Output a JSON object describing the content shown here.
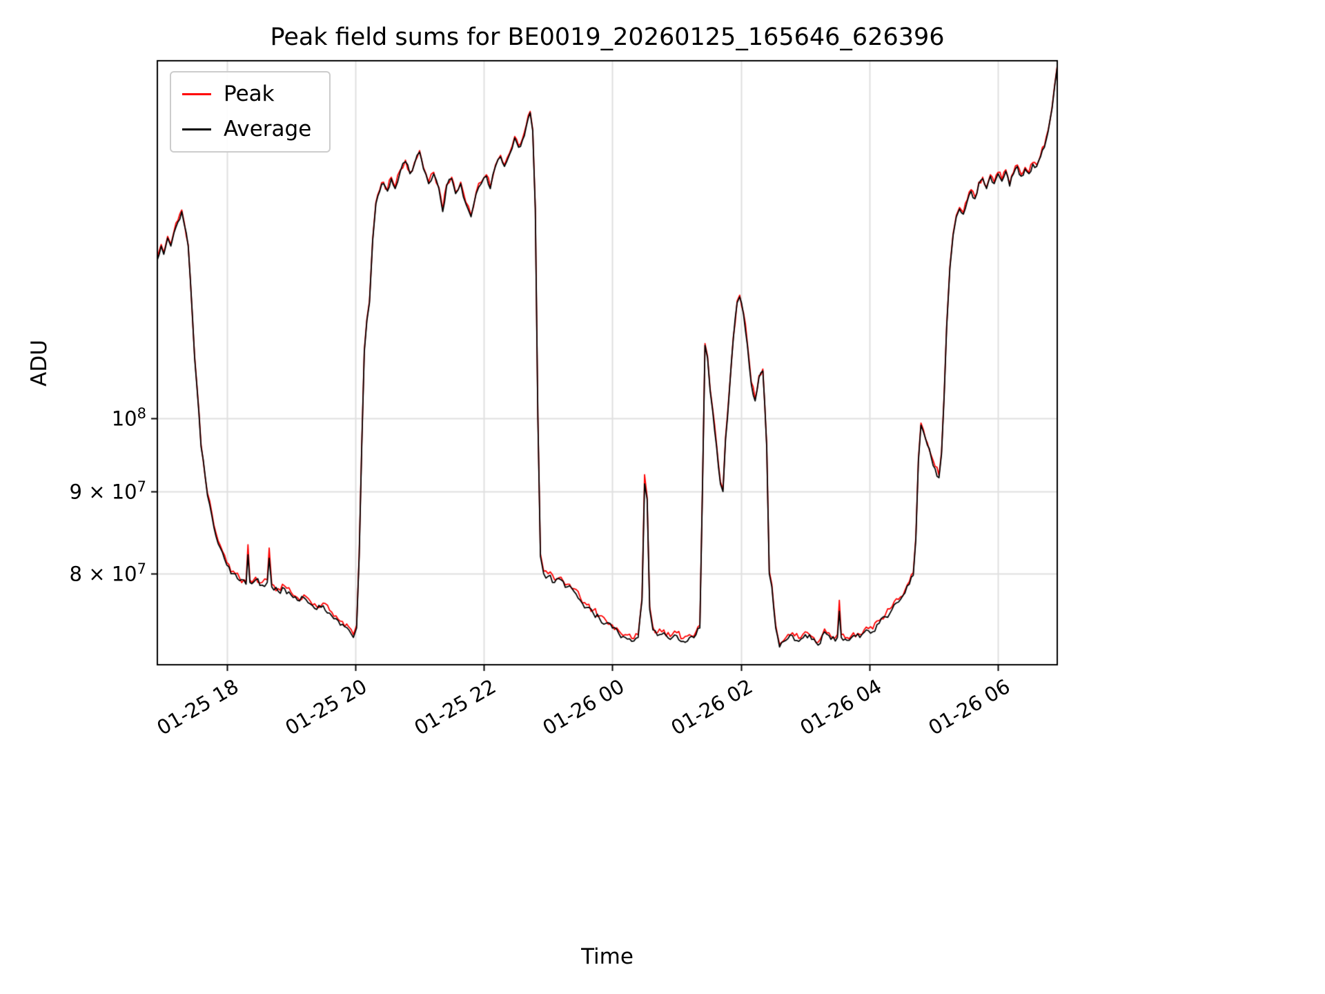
{
  "chart_data": {
    "type": "line",
    "title": "Peak field sums for BE0019_20260125_165646_626396",
    "xlabel": "Time",
    "ylabel": "ADU",
    "y_log_scale": true,
    "grid": true,
    "grid_color": "#e0e0e0",
    "ylim": [
      70200000,
      167000000
    ],
    "x_range_hours": [
      16.92,
      30.92
    ],
    "y_unit": 10000000,
    "x_ticks": [
      {
        "hour": 18,
        "label": "01-25 18"
      },
      {
        "hour": 20,
        "label": "01-25 20"
      },
      {
        "hour": 22,
        "label": "01-25 22"
      },
      {
        "hour": 24,
        "label": "01-26 00"
      },
      {
        "hour": 26,
        "label": "01-26 02"
      },
      {
        "hour": 28,
        "label": "01-26 04"
      },
      {
        "hour": 30,
        "label": "01-26 06"
      }
    ],
    "y_ticks": [
      {
        "value": 80000000,
        "prefix": "8 × 10",
        "exp": "7"
      },
      {
        "value": 90000000,
        "prefix": "9 × 10",
        "exp": "7"
      },
      {
        "value": 100000000,
        "prefix": "10",
        "exp": "8"
      }
    ],
    "legend": {
      "position": "upper left",
      "entries": [
        {
          "label": "Peak",
          "color": "#ff0000"
        },
        {
          "label": "Average",
          "color": "#000000"
        }
      ]
    },
    "x_hours": [
      16.92,
      16.98,
      17.02,
      17.08,
      17.13,
      17.18,
      17.24,
      17.3,
      17.34,
      17.4,
      17.5,
      17.6,
      17.7,
      17.8,
      17.9,
      18.0,
      18.1,
      18.2,
      18.3,
      18.33,
      18.36,
      18.45,
      18.55,
      18.63,
      18.66,
      18.7,
      18.8,
      18.9,
      19.0,
      19.1,
      19.2,
      19.3,
      19.4,
      19.5,
      19.6,
      19.7,
      19.8,
      19.9,
      19.97,
      20.02,
      20.06,
      20.1,
      20.14,
      20.18,
      20.22,
      20.27,
      20.32,
      20.38,
      20.44,
      20.5,
      20.56,
      20.62,
      20.7,
      20.78,
      20.85,
      20.92,
      21.0,
      21.06,
      21.14,
      21.22,
      21.3,
      21.36,
      21.42,
      21.5,
      21.56,
      21.64,
      21.72,
      21.8,
      21.88,
      21.96,
      22.04,
      22.1,
      22.18,
      22.26,
      22.32,
      22.4,
      22.48,
      22.54,
      22.6,
      22.66,
      22.72,
      22.76,
      22.8,
      22.84,
      22.88,
      22.93,
      23.0,
      23.1,
      23.2,
      23.3,
      23.4,
      23.5,
      23.6,
      23.7,
      23.8,
      23.9,
      24.0,
      24.1,
      24.2,
      24.3,
      24.4,
      24.46,
      24.5,
      24.54,
      24.58,
      24.63,
      24.7,
      24.8,
      24.9,
      25.0,
      25.1,
      25.2,
      25.3,
      25.36,
      25.4,
      25.44,
      25.48,
      25.52,
      25.56,
      25.62,
      25.68,
      25.72,
      25.76,
      25.82,
      25.88,
      25.94,
      25.98,
      26.04,
      26.1,
      26.16,
      26.22,
      26.28,
      26.34,
      26.4,
      26.44,
      26.48,
      26.54,
      26.6,
      26.7,
      26.8,
      26.9,
      27.0,
      27.1,
      27.2,
      27.3,
      27.4,
      27.5,
      27.53,
      27.56,
      27.65,
      27.75,
      27.85,
      27.95,
      28.05,
      28.15,
      28.25,
      28.35,
      28.45,
      28.55,
      28.62,
      28.68,
      28.72,
      28.76,
      28.8,
      28.84,
      28.9,
      28.96,
      29.02,
      29.08,
      29.12,
      29.16,
      29.2,
      29.25,
      29.3,
      29.35,
      29.4,
      29.46,
      29.52,
      29.58,
      29.64,
      29.7,
      29.76,
      29.82,
      29.88,
      29.94,
      30.0,
      30.06,
      30.12,
      30.18,
      30.24,
      30.3,
      30.36,
      30.42,
      30.48,
      30.54,
      30.6,
      30.66,
      30.72,
      30.78,
      30.84,
      30.88,
      30.92
    ],
    "series": [
      {
        "name": "Peak",
        "color": "#ff0000",
        "noise_pct": 0.55,
        "values_e7": [
          12.58,
          12.83,
          12.68,
          12.98,
          12.83,
          13.08,
          13.28,
          13.48,
          13.23,
          12.83,
          10.93,
          9.63,
          8.98,
          8.58,
          8.33,
          8.13,
          8.03,
          7.95,
          7.91,
          8.34,
          7.93,
          7.96,
          7.9,
          7.93,
          8.3,
          7.88,
          7.83,
          7.86,
          7.79,
          7.73,
          7.76,
          7.69,
          7.63,
          7.67,
          7.59,
          7.53,
          7.47,
          7.41,
          7.33,
          7.43,
          8.23,
          9.63,
          11.03,
          11.53,
          11.83,
          12.93,
          13.63,
          13.88,
          14.03,
          13.88,
          14.13,
          13.93,
          14.28,
          14.48,
          14.23,
          14.43,
          14.68,
          14.33,
          14.03,
          14.23,
          13.93,
          13.48,
          13.98,
          14.13,
          13.83,
          14.03,
          13.63,
          13.38,
          13.83,
          14.03,
          14.18,
          13.93,
          14.38,
          14.58,
          14.38,
          14.63,
          14.98,
          14.78,
          14.93,
          15.23,
          15.53,
          15.13,
          13.53,
          10.03,
          8.23,
          8.03,
          8.0,
          7.93,
          7.96,
          7.88,
          7.83,
          7.73,
          7.65,
          7.59,
          7.53,
          7.48,
          7.43,
          7.37,
          7.33,
          7.29,
          7.33,
          7.73,
          9.22,
          8.93,
          7.63,
          7.41,
          7.35,
          7.38,
          7.31,
          7.35,
          7.29,
          7.33,
          7.36,
          7.43,
          9.03,
          11.13,
          10.93,
          10.43,
          10.13,
          9.63,
          9.13,
          9.03,
          9.73,
          10.43,
          11.23,
          11.83,
          11.93,
          11.63,
          11.13,
          10.53,
          10.28,
          10.63,
          10.73,
          9.63,
          8.03,
          7.88,
          7.43,
          7.23,
          7.3,
          7.35,
          7.29,
          7.36,
          7.31,
          7.25,
          7.39,
          7.31,
          7.33,
          7.7,
          7.33,
          7.3,
          7.35,
          7.33,
          7.41,
          7.39,
          7.48,
          7.55,
          7.63,
          7.71,
          7.81,
          7.91,
          8.01,
          8.43,
          9.43,
          9.93,
          9.83,
          9.65,
          9.48,
          9.33,
          9.21,
          9.53,
          10.33,
          11.43,
          12.43,
          13.03,
          13.38,
          13.53,
          13.43,
          13.68,
          13.88,
          13.73,
          14.03,
          14.13,
          13.93,
          14.18,
          14.03,
          14.23,
          14.08,
          14.28,
          13.98,
          14.23,
          14.38,
          14.18,
          14.33,
          14.23,
          14.43,
          14.38,
          14.58,
          14.78,
          15.13,
          15.63,
          16.13,
          16.58
        ]
      },
      {
        "name": "Average",
        "color": "#000000",
        "noise_pct": 0.45,
        "values_e7": [
          12.55,
          12.8,
          12.65,
          12.95,
          12.8,
          13.05,
          13.25,
          13.45,
          13.2,
          12.8,
          10.9,
          9.6,
          8.95,
          8.55,
          8.3,
          8.1,
          8.0,
          7.92,
          7.88,
          8.22,
          7.9,
          7.93,
          7.87,
          7.9,
          8.18,
          7.85,
          7.8,
          7.83,
          7.76,
          7.7,
          7.73,
          7.66,
          7.6,
          7.64,
          7.56,
          7.5,
          7.44,
          7.38,
          7.3,
          7.4,
          8.2,
          9.6,
          11.0,
          11.5,
          11.8,
          12.9,
          13.6,
          13.85,
          14.0,
          13.85,
          14.1,
          13.9,
          14.25,
          14.45,
          14.2,
          14.4,
          14.65,
          14.3,
          14.0,
          14.2,
          13.9,
          13.45,
          13.95,
          14.1,
          13.8,
          14.0,
          13.6,
          13.35,
          13.8,
          14.0,
          14.15,
          13.9,
          14.35,
          14.55,
          14.35,
          14.6,
          14.95,
          14.75,
          14.9,
          15.2,
          15.5,
          15.1,
          13.5,
          10.0,
          8.2,
          8.0,
          7.97,
          7.9,
          7.93,
          7.85,
          7.8,
          7.7,
          7.62,
          7.56,
          7.5,
          7.45,
          7.4,
          7.34,
          7.3,
          7.26,
          7.3,
          7.7,
          9.1,
          8.9,
          7.6,
          7.38,
          7.32,
          7.35,
          7.28,
          7.32,
          7.26,
          7.3,
          7.33,
          7.4,
          9.0,
          11.1,
          10.9,
          10.4,
          10.1,
          9.6,
          9.1,
          9.0,
          9.7,
          10.4,
          11.2,
          11.8,
          11.9,
          11.6,
          11.1,
          10.5,
          10.25,
          10.6,
          10.7,
          9.6,
          8.0,
          7.85,
          7.4,
          7.2,
          7.27,
          7.32,
          7.26,
          7.33,
          7.28,
          7.22,
          7.36,
          7.28,
          7.3,
          7.58,
          7.3,
          7.27,
          7.32,
          7.3,
          7.38,
          7.36,
          7.45,
          7.52,
          7.6,
          7.68,
          7.78,
          7.88,
          7.98,
          8.4,
          9.4,
          9.9,
          9.8,
          9.62,
          9.45,
          9.3,
          9.18,
          9.5,
          10.3,
          11.4,
          12.4,
          13.0,
          13.35,
          13.5,
          13.4,
          13.65,
          13.85,
          13.7,
          14.0,
          14.1,
          13.9,
          14.15,
          14.0,
          14.2,
          14.05,
          14.25,
          13.95,
          14.2,
          14.35,
          14.15,
          14.3,
          14.2,
          14.4,
          14.35,
          14.55,
          14.75,
          15.1,
          15.6,
          16.1,
          16.55
        ]
      }
    ]
  }
}
